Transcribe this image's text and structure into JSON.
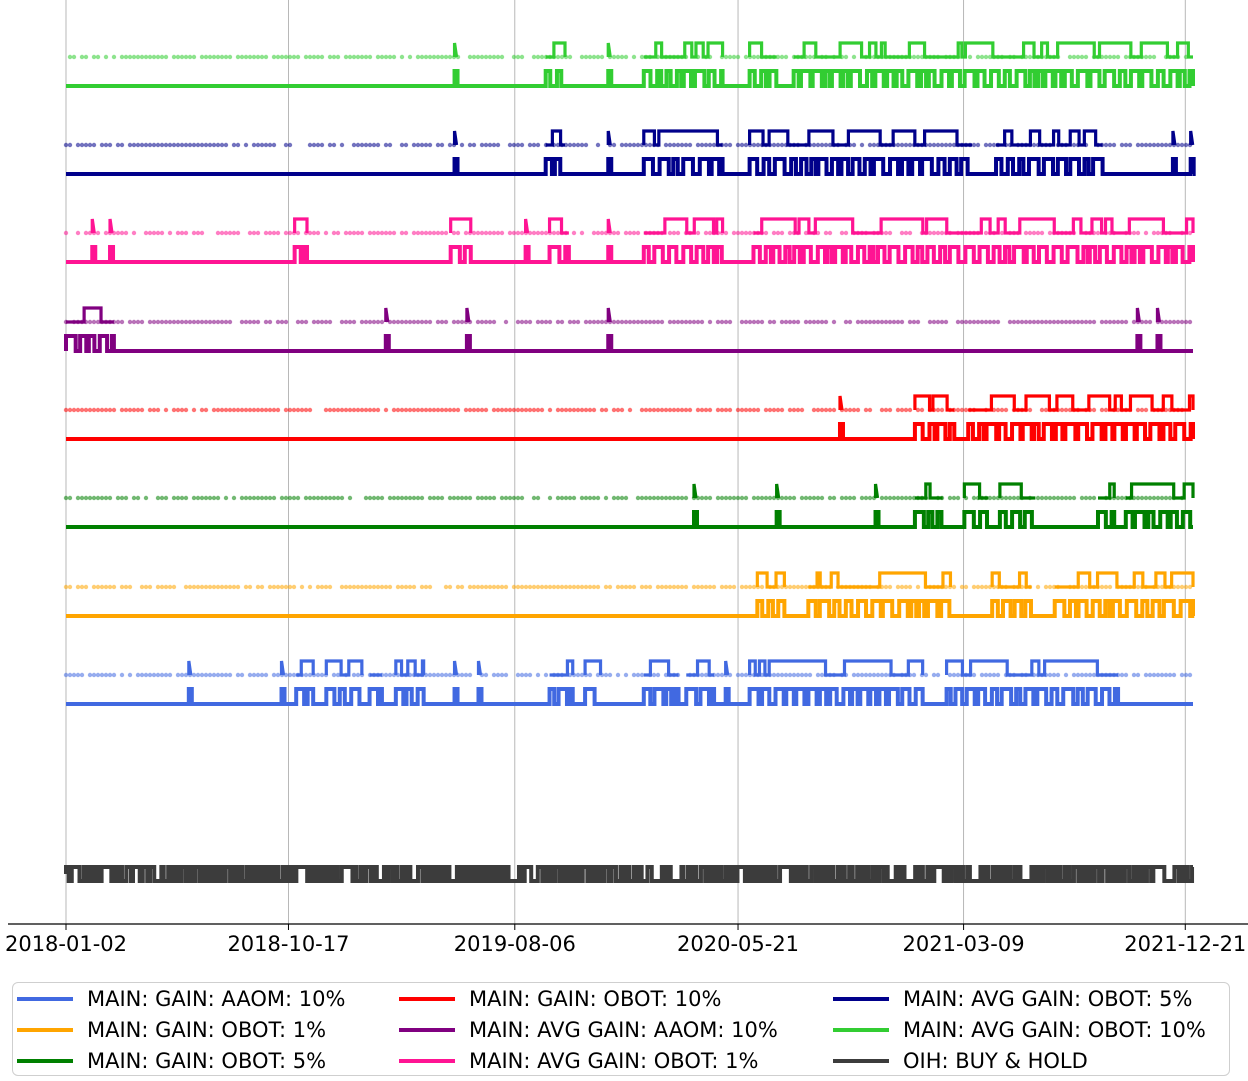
{
  "chart_data": {
    "type": "line",
    "x_ticks": [
      "2018-01-02",
      "2018-10-17",
      "2019-08-06",
      "2020-05-21",
      "2021-03-09",
      "2021-12-21"
    ],
    "x_range": [
      "2018-01-02",
      "2021-12-31"
    ],
    "grid": "vertical lines at x ticks",
    "y_axis_visible": false,
    "legend_position": "bottom",
    "legend_columns": 3,
    "series": [
      {
        "name": "MAIN: GAIN: AAOM: 10%",
        "color": "#4169e1",
        "events": [
          {
            "start": "2018-06-10",
            "end": "2018-06-14"
          },
          {
            "start": "2018-10-08",
            "end": "2018-10-12"
          },
          {
            "start": "2018-10-27",
            "end": "2018-11-18"
          },
          {
            "start": "2018-12-05",
            "end": "2019-01-20"
          },
          {
            "start": "2019-01-30",
            "end": "2019-02-15"
          },
          {
            "start": "2019-03-05",
            "end": "2019-04-10"
          },
          {
            "start": "2019-05-20",
            "end": "2019-05-25"
          },
          {
            "start": "2019-06-20",
            "end": "2019-06-25"
          },
          {
            "start": "2019-09-20",
            "end": "2019-10-20"
          },
          {
            "start": "2019-11-05",
            "end": "2019-11-25"
          },
          {
            "start": "2020-01-20",
            "end": "2020-03-05"
          },
          {
            "start": "2020-03-15",
            "end": "2020-04-20"
          },
          {
            "start": "2020-05-05",
            "end": "2020-05-10"
          },
          {
            "start": "2020-06-05",
            "end": "2021-01-15"
          },
          {
            "start": "2021-02-15",
            "end": "2021-09-25"
          }
        ]
      },
      {
        "name": "MAIN: GAIN: OBOT: 1%",
        "color": "#ffa500",
        "events": [
          {
            "start": "2020-06-15",
            "end": "2020-07-20"
          },
          {
            "start": "2020-08-20",
            "end": "2021-02-20"
          },
          {
            "start": "2021-04-15",
            "end": "2021-06-05"
          },
          {
            "start": "2021-07-05",
            "end": "2021-12-31"
          }
        ]
      },
      {
        "name": "MAIN: GAIN: OBOT: 5%",
        "color": "#008000",
        "events": [
          {
            "start": "2020-03-25",
            "end": "2020-03-30"
          },
          {
            "start": "2020-07-10",
            "end": "2020-07-15"
          },
          {
            "start": "2020-11-15",
            "end": "2020-11-20"
          },
          {
            "start": "2021-01-05",
            "end": "2021-02-10"
          },
          {
            "start": "2021-03-10",
            "end": "2021-04-10"
          },
          {
            "start": "2021-04-25",
            "end": "2021-06-10"
          },
          {
            "start": "2021-08-30",
            "end": "2021-09-20"
          },
          {
            "start": "2021-10-05",
            "end": "2021-12-31"
          }
        ]
      },
      {
        "name": "MAIN: GAIN: OBOT: 10%",
        "color": "#ff0000",
        "events": [
          {
            "start": "2020-09-30",
            "end": "2020-10-05"
          },
          {
            "start": "2021-01-05",
            "end": "2021-02-25"
          },
          {
            "start": "2021-03-15",
            "end": "2021-12-31"
          }
        ]
      },
      {
        "name": "MAIN: AVG GAIN: AAOM: 10%",
        "color": "#800080",
        "events": [
          {
            "start": "2018-01-02",
            "end": "2018-03-05"
          },
          {
            "start": "2019-02-20",
            "end": "2019-02-25"
          },
          {
            "start": "2019-06-05",
            "end": "2019-06-10"
          },
          {
            "start": "2019-12-05",
            "end": "2019-12-10"
          },
          {
            "start": "2021-10-20",
            "end": "2021-10-25"
          },
          {
            "start": "2021-11-15",
            "end": "2021-11-20"
          }
        ]
      },
      {
        "name": "MAIN: AVG GAIN: OBOT: 1%",
        "color": "#ff1493",
        "events": [
          {
            "start": "2018-02-05",
            "end": "2018-02-10"
          },
          {
            "start": "2018-02-28",
            "end": "2018-03-05"
          },
          {
            "start": "2018-10-25",
            "end": "2018-11-10"
          },
          {
            "start": "2019-05-15",
            "end": "2019-06-10"
          },
          {
            "start": "2019-08-20",
            "end": "2019-08-25"
          },
          {
            "start": "2019-09-20",
            "end": "2019-10-15"
          },
          {
            "start": "2019-12-05",
            "end": "2019-12-10"
          },
          {
            "start": "2020-01-20",
            "end": "2020-05-01"
          },
          {
            "start": "2020-06-10",
            "end": "2021-12-31"
          }
        ]
      },
      {
        "name": "MAIN: AVG GAIN: OBOT: 5%",
        "color": "#00008b",
        "events": [
          {
            "start": "2019-05-20",
            "end": "2019-05-25"
          },
          {
            "start": "2019-09-15",
            "end": "2019-10-10"
          },
          {
            "start": "2019-12-05",
            "end": "2019-12-10"
          },
          {
            "start": "2020-01-20",
            "end": "2020-05-01"
          },
          {
            "start": "2020-06-05",
            "end": "2021-03-20"
          },
          {
            "start": "2021-04-20",
            "end": "2021-09-05"
          },
          {
            "start": "2021-12-05",
            "end": "2021-12-10"
          },
          {
            "start": "2021-12-28",
            "end": "2021-12-31"
          }
        ]
      },
      {
        "name": "MAIN: AVG GAIN: OBOT: 10%",
        "color": "#32cd32",
        "events": [
          {
            "start": "2019-05-20",
            "end": "2019-05-28"
          },
          {
            "start": "2019-09-15",
            "end": "2019-10-10"
          },
          {
            "start": "2019-12-05",
            "end": "2019-12-10"
          },
          {
            "start": "2020-01-20",
            "end": "2020-05-01"
          },
          {
            "start": "2020-06-05",
            "end": "2020-07-10"
          },
          {
            "start": "2020-08-01",
            "end": "2021-12-31"
          }
        ]
      },
      {
        "name": "OIH: BUY & HOLD",
        "color": "#3c3c3c",
        "style": "dense oscillation over entire range"
      }
    ]
  },
  "legend": {
    "col1": [
      "MAIN: GAIN: AAOM: 10%",
      "MAIN: GAIN: OBOT: 1%",
      "MAIN: GAIN: OBOT: 5%"
    ],
    "col2": [
      "MAIN: GAIN: OBOT: 10%",
      "MAIN: AVG GAIN: AAOM: 10%",
      "MAIN: AVG GAIN: OBOT: 1%"
    ],
    "col3": [
      "MAIN: AVG GAIN: OBOT: 5%",
      "MAIN: AVG GAIN: OBOT: 10%",
      "OIH: BUY & HOLD"
    ]
  },
  "legend_colors": {
    "col1": [
      "#4169e1",
      "#ffa500",
      "#008000"
    ],
    "col2": [
      "#ff0000",
      "#800080",
      "#ff1493"
    ],
    "col3": [
      "#00008b",
      "#32cd32",
      "#3c3c3c"
    ]
  }
}
